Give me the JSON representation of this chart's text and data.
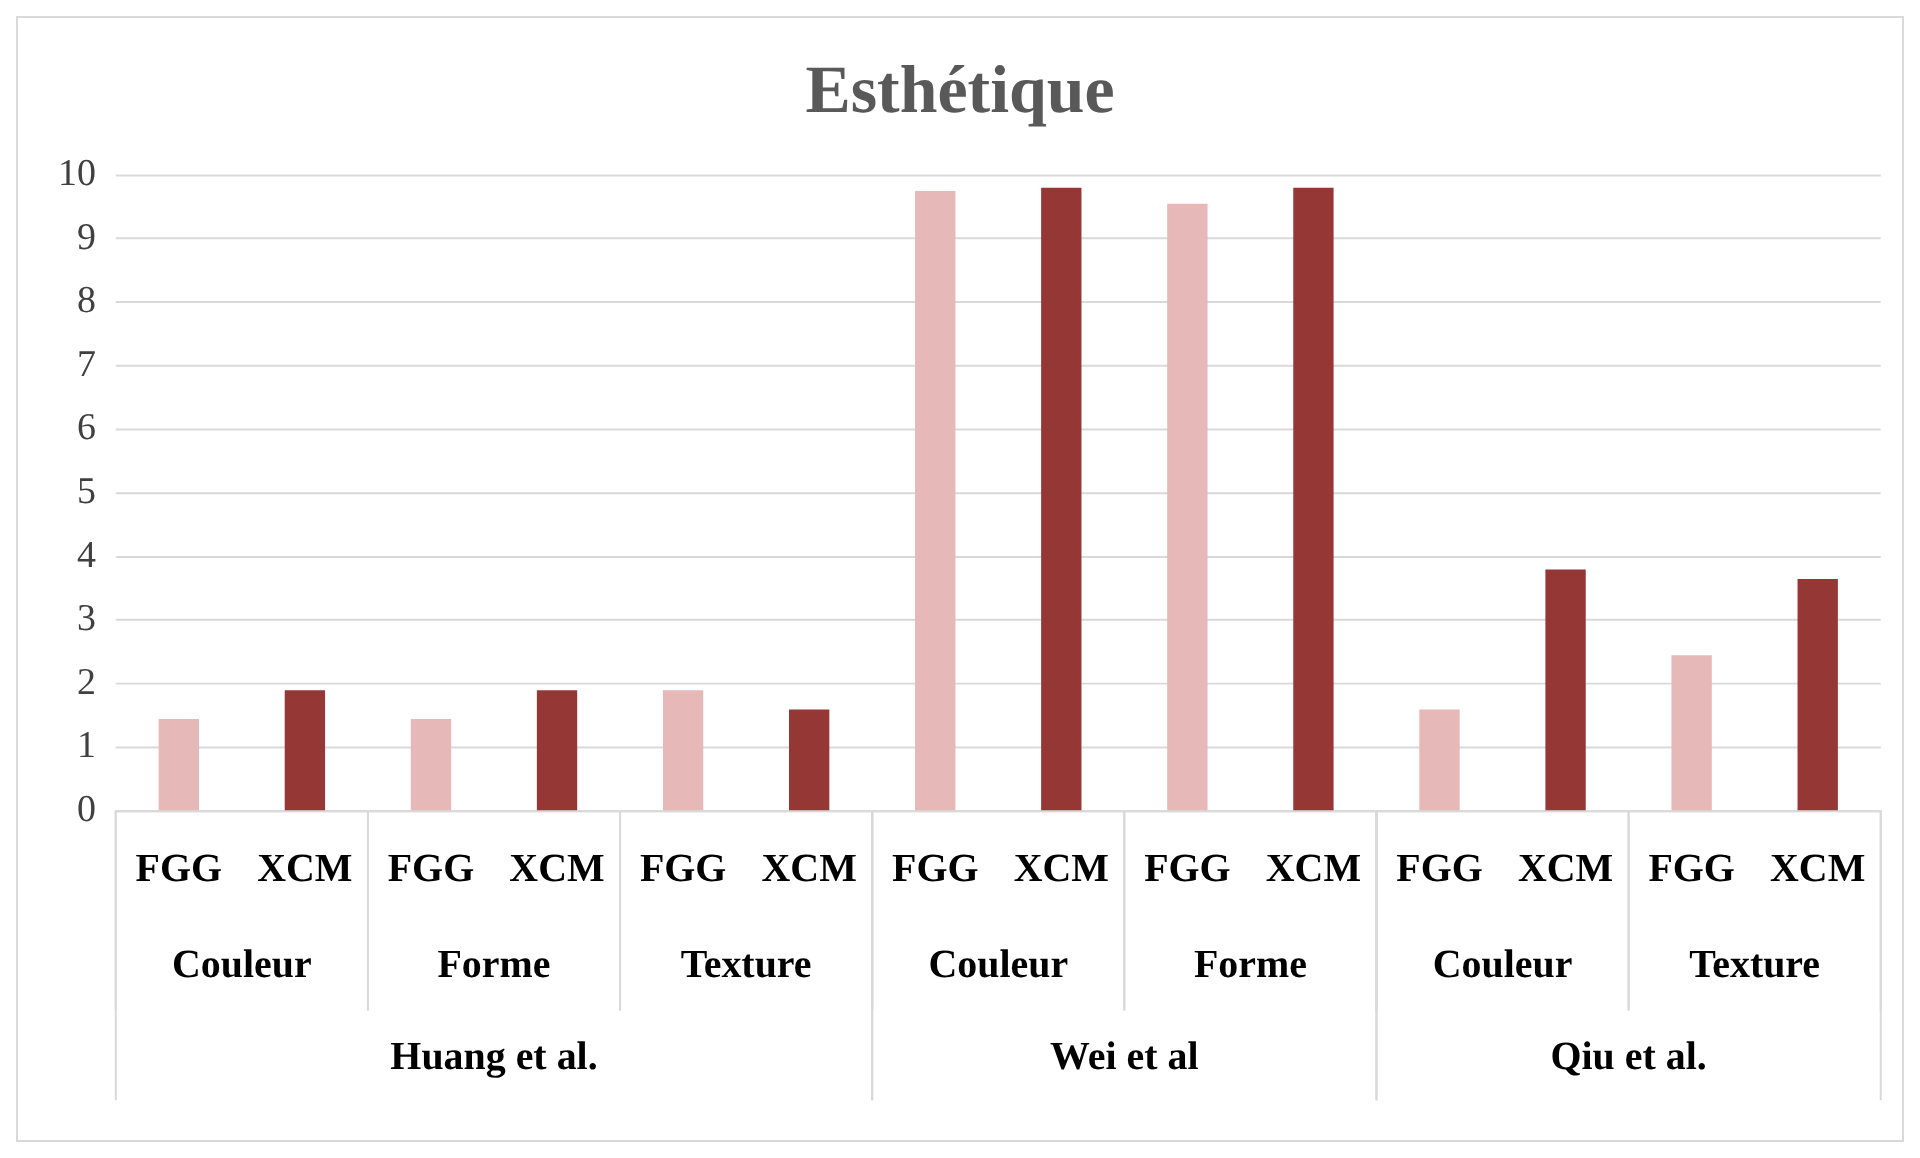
{
  "chart_data": {
    "type": "bar",
    "title": "Esthétique",
    "categories": [
      "FGG",
      "XCM",
      "FGG",
      "XCM",
      "FGG",
      "XCM",
      "FGG",
      "XCM",
      "FGG",
      "XCM",
      "FGG",
      "XCM",
      "FGG",
      "XCM"
    ],
    "values": [
      1.45,
      1.9,
      1.45,
      1.9,
      1.9,
      1.6,
      9.75,
      9.8,
      9.55,
      9.8,
      1.6,
      3.8,
      2.45,
      3.65
    ],
    "colors": [
      "#e6b8b7",
      "#953735",
      "#e6b8b7",
      "#953735",
      "#e6b8b7",
      "#953735",
      "#e6b8b7",
      "#953735",
      "#e6b8b7",
      "#953735",
      "#e6b8b7",
      "#953735",
      "#e6b8b7",
      "#953735"
    ],
    "annotations": [
      "Couleur",
      "Forme",
      "Texture",
      "Couleur",
      "Forme",
      "Couleur",
      "Texture",
      "Huang et al.",
      "Wei et al",
      "Qiu et al."
    ],
    "ylim": [
      0,
      10
    ],
    "yticks": [
      0,
      1,
      2,
      3,
      4,
      5,
      6,
      7,
      8,
      9,
      10
    ],
    "grid": "y",
    "legend": false
  }
}
